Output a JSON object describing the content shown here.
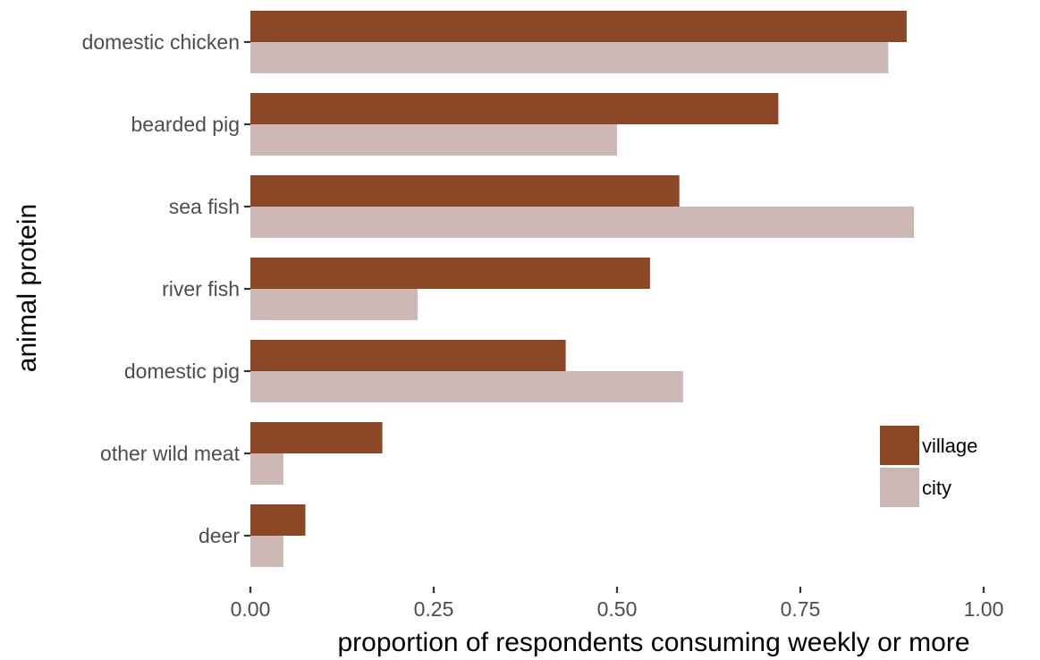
{
  "chart_data": {
    "type": "bar",
    "orientation": "horizontal",
    "categories": [
      "domestic chicken",
      "bearded pig",
      "sea fish",
      "river fish",
      "domestic pig",
      "other wild meat",
      "deer"
    ],
    "series": [
      {
        "name": "village",
        "color": "#8B4726",
        "values": [
          0.895,
          0.72,
          0.585,
          0.545,
          0.43,
          0.18,
          0.075
        ]
      },
      {
        "name": "city",
        "color": "#CDB7B5",
        "values": [
          0.87,
          0.5,
          0.905,
          0.228,
          0.59,
          0.045,
          0.045
        ]
      }
    ],
    "xlabel": "proportion of respondents consuming weekly or more",
    "ylabel": "animal protein",
    "xlim": [
      0,
      1
    ],
    "xticks": [
      "0.00",
      "0.25",
      "0.50",
      "0.75",
      "1.00"
    ],
    "grid": false,
    "legend_position": "bottom-right"
  }
}
